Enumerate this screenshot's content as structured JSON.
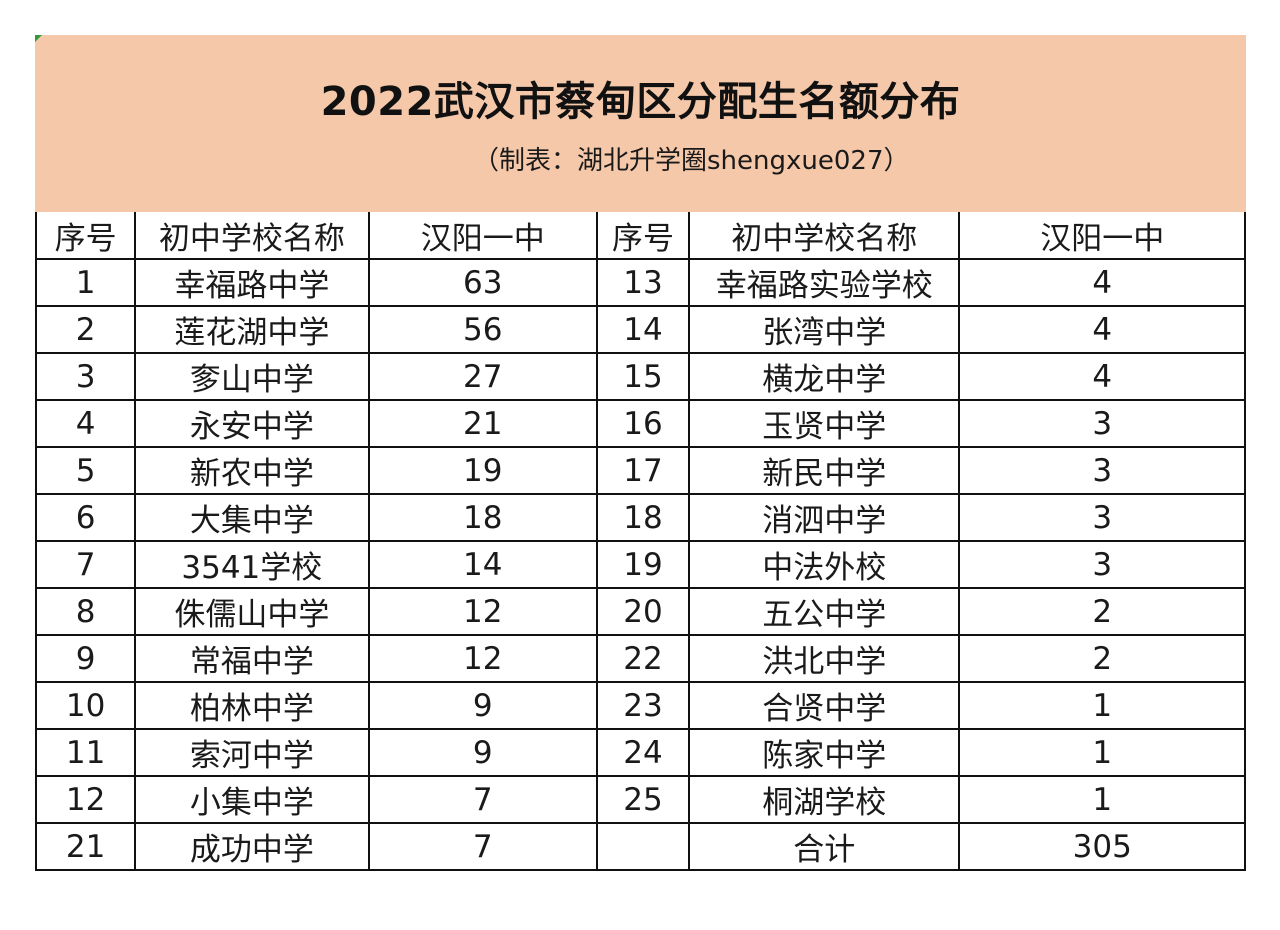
{
  "title": "2022武汉市蔡甸区分配生名额分布",
  "subtitle": "（制表：湖北升学圈shengxue027）",
  "headers": [
    "序号",
    "初中学校名称",
    "汉阳一中",
    "序号",
    "初中学校名称",
    "汉阳一中"
  ],
  "rows": [
    [
      "1",
      "幸福路中学",
      "63",
      "13",
      "幸福路实验学校",
      "4"
    ],
    [
      "2",
      "莲花湖中学",
      "56",
      "14",
      "张湾中学",
      "4"
    ],
    [
      "3",
      "奓山中学",
      "27",
      "15",
      "横龙中学",
      "4"
    ],
    [
      "4",
      "永安中学",
      "21",
      "16",
      "玉贤中学",
      "3"
    ],
    [
      "5",
      "新农中学",
      "19",
      "17",
      "新民中学",
      "3"
    ],
    [
      "6",
      "大集中学",
      "18",
      "18",
      "消泗中学",
      "3"
    ],
    [
      "7",
      "3541学校",
      "14",
      "19",
      "中法外校",
      "3"
    ],
    [
      "8",
      "侏儒山中学",
      "12",
      "20",
      "五公中学",
      "2"
    ],
    [
      "9",
      "常福中学",
      "12",
      "22",
      "洪北中学",
      "2"
    ],
    [
      "10",
      "柏林中学",
      "9",
      "23",
      "合贤中学",
      "1"
    ],
    [
      "11",
      "索河中学",
      "9",
      "24",
      "陈家中学",
      "1"
    ],
    [
      "12",
      "小集中学",
      "7",
      "25",
      "桐湖学校",
      "1"
    ],
    [
      "21",
      "成功中学",
      "7",
      "",
      "合计",
      "305"
    ]
  ],
  "colors": {
    "banner": "#f6c8aa",
    "corner_mark": "#2e9a3c"
  }
}
